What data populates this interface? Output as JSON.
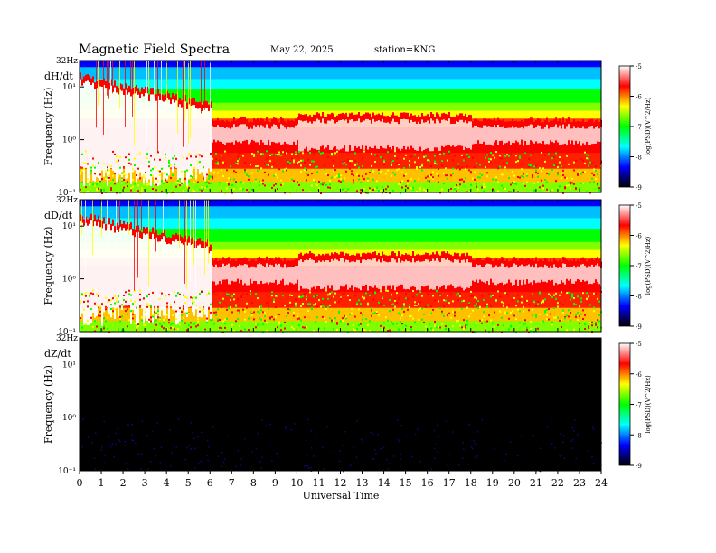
{
  "header": {
    "title": "Magnetic  Field  Spectra",
    "date": "May 22, 2025",
    "station": "station=KNG"
  },
  "chart_data": {
    "type": "heatmap",
    "xlabel": "Universal Time",
    "x_ticks": [
      "0",
      "1",
      "2",
      "3",
      "4",
      "5",
      "6",
      "7",
      "8",
      "9",
      "10",
      "11",
      "12",
      "13",
      "14",
      "15",
      "16",
      "17",
      "18",
      "19",
      "20",
      "21",
      "22",
      "23",
      "24"
    ],
    "xlim": [
      0,
      24
    ],
    "y_scale": "log",
    "colorbar": {
      "label": "log(PSD)(V^2/Hz)",
      "ticks": [
        "-5",
        "-6",
        "-7",
        "-8",
        "-9"
      ],
      "range": [
        -9,
        -5
      ],
      "colors": [
        "#000000",
        "#0000ff",
        "#00ffff",
        "#00ff00",
        "#ffff00",
        "#ff0000",
        "#ffffff"
      ]
    },
    "panels": [
      {
        "component": "dH/dt",
        "ylabel": "Frequency (Hz)",
        "top_label": "32Hz",
        "y_ticks": [
          "10¹",
          "10⁰",
          "10⁻¹"
        ],
        "activity": "active"
      },
      {
        "component": "dD/dt",
        "ylabel": "Frequency (Hz)",
        "top_label": "32Hz",
        "y_ticks": [
          "10¹",
          "10⁰",
          "10⁻¹"
        ],
        "activity": "active"
      },
      {
        "component": "dZ/dt",
        "ylabel": "Frequency (Hz)",
        "top_label": "32Hz",
        "y_ticks": [
          "10¹",
          "10⁰",
          "10⁻¹"
        ],
        "activity": "quiet"
      }
    ]
  }
}
